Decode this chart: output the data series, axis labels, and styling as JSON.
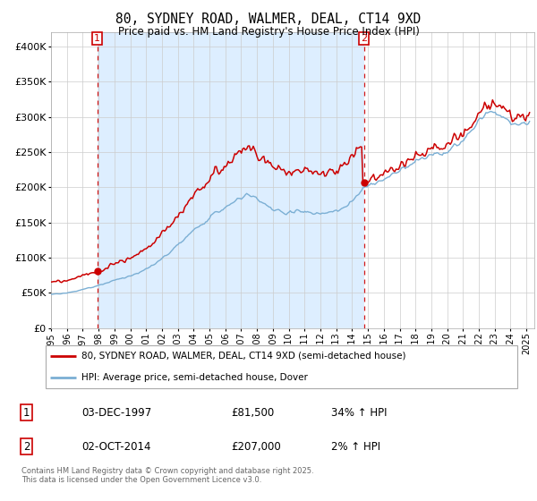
{
  "title": "80, SYDNEY ROAD, WALMER, DEAL, CT14 9XD",
  "subtitle": "Price paid vs. HM Land Registry's House Price Index (HPI)",
  "legend_line1": "80, SYDNEY ROAD, WALMER, DEAL, CT14 9XD (semi-detached house)",
  "legend_line2": "HPI: Average price, semi-detached house, Dover",
  "marker1_date": "03-DEC-1997",
  "marker1_price": 81500,
  "marker1_label": "34% ↑ HPI",
  "marker2_date": "02-OCT-2014",
  "marker2_price": 207000,
  "marker2_label": "2% ↑ HPI",
  "footnote": "Contains HM Land Registry data © Crown copyright and database right 2025.\nThis data is licensed under the Open Government Licence v3.0.",
  "price_color": "#cc0000",
  "hpi_color": "#7bafd4",
  "hpi_fill_color": "#ddeeff",
  "marker_color": "#cc0000",
  "vline_color": "#cc0000",
  "background_color": "#ffffff",
  "ylim": [
    0,
    420000
  ],
  "yticks": [
    0,
    50000,
    100000,
    150000,
    200000,
    250000,
    300000,
    350000,
    400000
  ],
  "t1": 1997.917,
  "t2": 2014.75
}
